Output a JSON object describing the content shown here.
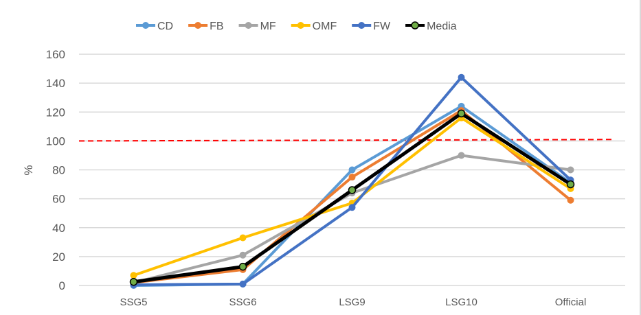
{
  "chart_data": {
    "type": "line",
    "categories": [
      "SSG5",
      "SSG6",
      "LSG9",
      "LSG10",
      "Official"
    ],
    "ylabel": "%",
    "ylim": [
      0,
      160
    ],
    "yticks": [
      0,
      20,
      40,
      60,
      80,
      100,
      120,
      140,
      160
    ],
    "grid": true,
    "legend_position": "top",
    "series": [
      {
        "name": "CD",
        "color": "#5B9BD5",
        "values": [
          0,
          1,
          80,
          124,
          71
        ]
      },
      {
        "name": "FB",
        "color": "#ED7D31",
        "values": [
          2,
          11,
          75,
          121,
          59
        ]
      },
      {
        "name": "MF",
        "color": "#A5A5A5",
        "values": [
          2,
          21,
          64,
          90,
          80
        ]
      },
      {
        "name": "OMF",
        "color": "#FFC000",
        "values": [
          7,
          33,
          57,
          116,
          67
        ]
      },
      {
        "name": "FW",
        "color": "#4472C4",
        "values": [
          0.5,
          1,
          54,
          144,
          73
        ]
      },
      {
        "name": "Media",
        "color": "#000000",
        "marker_color": "#70AD47",
        "values": [
          2.5,
          13,
          66,
          119,
          70
        ]
      }
    ],
    "reference_line": {
      "values": [
        100,
        101
      ],
      "color": "#FF0000",
      "style": "dashed"
    }
  }
}
